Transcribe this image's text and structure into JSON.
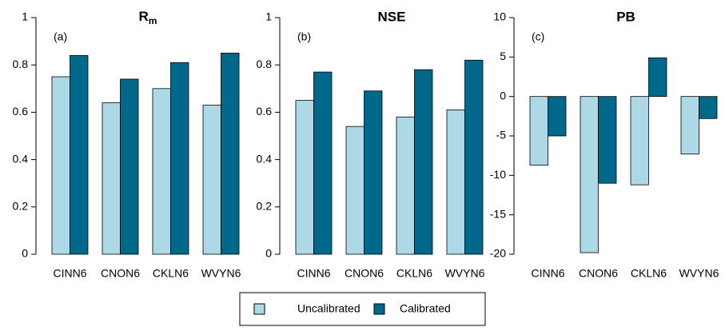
{
  "chart_data": [
    {
      "type": "bar",
      "title": "R",
      "title_subscript": "m",
      "panel_label": "(a)",
      "categories": [
        "CINN6",
        "CNON6",
        "CKLN6",
        "WVYN6"
      ],
      "series": [
        {
          "name": "Uncalibrated",
          "color": "#add8e6",
          "values": [
            0.75,
            0.64,
            0.7,
            0.63
          ]
        },
        {
          "name": "Calibrated",
          "color": "#00688b",
          "values": [
            0.84,
            0.74,
            0.81,
            0.85
          ]
        }
      ],
      "ylim": [
        0,
        1
      ],
      "yticks": [
        0,
        0.2,
        0.4,
        0.6,
        0.8,
        1
      ]
    },
    {
      "type": "bar",
      "title": "NSE",
      "panel_label": "(b)",
      "categories": [
        "CINN6",
        "CNON6",
        "CKLN6",
        "WVYN6"
      ],
      "series": [
        {
          "color": "#add8e6",
          "values": [
            0.65,
            0.54,
            0.58,
            0.61
          ]
        },
        {
          "color": "#00688b",
          "values": [
            0.77,
            0.69,
            0.78,
            0.82
          ]
        }
      ],
      "ylim": [
        0,
        1
      ],
      "yticks": [
        0,
        0.2,
        0.4,
        0.6,
        0.8,
        1
      ]
    },
    {
      "type": "bar",
      "title": "PB",
      "panel_label": "(c)",
      "categories": [
        "CINN6",
        "CNON6",
        "CKLN6",
        "WVYN6"
      ],
      "series": [
        {
          "color": "#add8e6",
          "values": [
            -8.7,
            -19.8,
            -11.2,
            -7.3
          ]
        },
        {
          "color": "#00688b",
          "values": [
            -5.0,
            -11.0,
            4.9,
            -2.8
          ]
        }
      ],
      "ylim": [
        -20,
        10
      ],
      "yticks": [
        -20,
        -15,
        -10,
        -5,
        0,
        5,
        10
      ]
    }
  ]
}
